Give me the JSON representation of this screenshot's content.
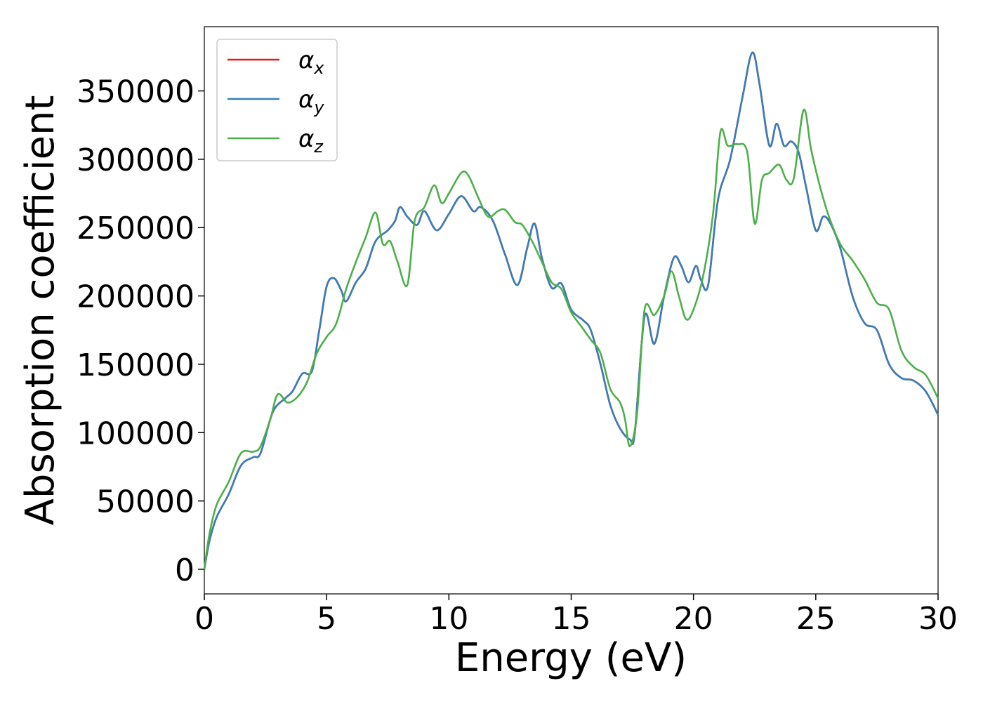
{
  "chart_data": {
    "type": "line",
    "xlabel": "Energy (eV)",
    "ylabel": "Absorption coefficient",
    "xlim": [
      0,
      30
    ],
    "ylim": [
      -18000,
      397000
    ],
    "xticks": [
      "0",
      "5",
      "10",
      "15",
      "20",
      "25",
      "30"
    ],
    "yticks": [
      "0",
      "50000",
      "100000",
      "150000",
      "200000",
      "250000",
      "300000",
      "350000"
    ],
    "grid": false,
    "legend_position": "top-left",
    "series": [
      {
        "name": "α",
        "subscript": "x",
        "color": "#e41a1c",
        "x": [
          0,
          0.2,
          0.5,
          1.0,
          1.5,
          2.0,
          2.3,
          2.8,
          3.3,
          3.6,
          4.0,
          4.4,
          4.7,
          5.0,
          5.3,
          5.6,
          5.8,
          6.2,
          6.6,
          7.0,
          7.5,
          7.8,
          8.0,
          8.3,
          8.7,
          9.0,
          9.5,
          10.0,
          10.5,
          11.0,
          11.3,
          11.8,
          12.3,
          12.8,
          13.2,
          13.5,
          13.8,
          14.2,
          14.6,
          15.0,
          15.5,
          15.8,
          16.2,
          16.6,
          17.0,
          17.4,
          17.6,
          18.0,
          18.4,
          18.8,
          19.2,
          19.5,
          19.8,
          20.1,
          20.3,
          20.6,
          21.0,
          21.5,
          22.0,
          22.4,
          22.7,
          23.1,
          23.4,
          23.7,
          24.0,
          24.3,
          24.6,
          25.0,
          25.3,
          25.6,
          26.0,
          26.5,
          27.0,
          27.5,
          28.0,
          28.5,
          29.0,
          29.5,
          30.0
        ],
        "y": [
          0,
          20000,
          38000,
          55000,
          76000,
          82000,
          85000,
          115000,
          125000,
          130000,
          143000,
          145000,
          175000,
          207000,
          213000,
          204000,
          196000,
          210000,
          220000,
          240000,
          248000,
          255000,
          265000,
          258000,
          252000,
          262000,
          248000,
          260000,
          273000,
          262000,
          265000,
          255000,
          230000,
          208000,
          235000,
          253000,
          228000,
          206000,
          209000,
          190000,
          182000,
          175000,
          150000,
          120000,
          103000,
          95000,
          100000,
          185000,
          165000,
          200000,
          228000,
          222000,
          210000,
          222000,
          212000,
          208000,
          270000,
          300000,
          345000,
          378000,
          355000,
          310000,
          326000,
          310000,
          313000,
          305000,
          280000,
          248000,
          258000,
          253000,
          235000,
          200000,
          180000,
          175000,
          150000,
          140000,
          138000,
          130000,
          113000
        ]
      },
      {
        "name": "α",
        "subscript": "y",
        "color": "#377eb8",
        "x": [
          0,
          0.2,
          0.5,
          1.0,
          1.5,
          2.0,
          2.3,
          2.8,
          3.3,
          3.6,
          4.0,
          4.4,
          4.7,
          5.0,
          5.3,
          5.6,
          5.8,
          6.2,
          6.6,
          7.0,
          7.5,
          7.8,
          8.0,
          8.3,
          8.7,
          9.0,
          9.5,
          10.0,
          10.5,
          11.0,
          11.3,
          11.8,
          12.3,
          12.8,
          13.2,
          13.5,
          13.8,
          14.2,
          14.6,
          15.0,
          15.5,
          15.8,
          16.2,
          16.6,
          17.0,
          17.4,
          17.6,
          18.0,
          18.4,
          18.8,
          19.2,
          19.5,
          19.8,
          20.1,
          20.3,
          20.6,
          21.0,
          21.5,
          22.0,
          22.4,
          22.7,
          23.1,
          23.4,
          23.7,
          24.0,
          24.3,
          24.6,
          25.0,
          25.3,
          25.6,
          26.0,
          26.5,
          27.0,
          27.5,
          28.0,
          28.5,
          29.0,
          29.5,
          30.0
        ],
        "y": [
          0,
          20000,
          38000,
          55000,
          76000,
          82000,
          85000,
          115000,
          125000,
          130000,
          143000,
          145000,
          175000,
          207000,
          213000,
          204000,
          196000,
          210000,
          220000,
          240000,
          248000,
          255000,
          265000,
          258000,
          252000,
          262000,
          248000,
          260000,
          273000,
          262000,
          265000,
          255000,
          230000,
          208000,
          235000,
          253000,
          228000,
          206000,
          209000,
          190000,
          182000,
          175000,
          150000,
          120000,
          103000,
          95000,
          100000,
          185000,
          165000,
          200000,
          228000,
          222000,
          210000,
          222000,
          212000,
          208000,
          270000,
          300000,
          345000,
          378000,
          355000,
          310000,
          326000,
          310000,
          313000,
          305000,
          280000,
          248000,
          258000,
          253000,
          235000,
          200000,
          180000,
          175000,
          150000,
          140000,
          138000,
          130000,
          113000
        ]
      },
      {
        "name": "α",
        "subscript": "z",
        "color": "#4daf4a",
        "x": [
          0,
          0.2,
          0.5,
          1.0,
          1.5,
          2.0,
          2.3,
          2.7,
          3.0,
          3.4,
          3.8,
          4.2,
          4.6,
          5.0,
          5.4,
          5.8,
          6.2,
          6.6,
          7.0,
          7.3,
          7.6,
          7.9,
          8.3,
          8.6,
          9.0,
          9.4,
          9.7,
          10.0,
          10.5,
          10.8,
          11.2,
          11.6,
          12.0,
          12.3,
          12.7,
          13.0,
          13.4,
          13.8,
          14.2,
          14.6,
          15.0,
          15.4,
          15.8,
          16.2,
          16.6,
          17.0,
          17.2,
          17.4,
          17.7,
          18.0,
          18.4,
          18.8,
          19.1,
          19.4,
          19.7,
          20.0,
          20.4,
          20.8,
          21.1,
          21.4,
          21.8,
          22.2,
          22.5,
          22.8,
          23.1,
          23.5,
          23.8,
          24.1,
          24.5,
          24.8,
          25.1,
          25.5,
          26.0,
          26.5,
          27.0,
          27.5,
          28.0,
          28.5,
          29.0,
          29.5,
          30.0
        ],
        "y": [
          0,
          25000,
          47000,
          64000,
          85000,
          86000,
          90000,
          110000,
          128000,
          122000,
          126000,
          137000,
          158000,
          170000,
          180000,
          205000,
          225000,
          243000,
          261000,
          238000,
          240000,
          225000,
          208000,
          255000,
          265000,
          281000,
          268000,
          275000,
          290000,
          288000,
          272000,
          258000,
          262000,
          263000,
          254000,
          252000,
          240000,
          225000,
          210000,
          205000,
          188000,
          178000,
          168000,
          158000,
          132000,
          122000,
          110000,
          90000,
          115000,
          190000,
          186000,
          200000,
          218000,
          200000,
          183000,
          190000,
          215000,
          260000,
          320000,
          310000,
          311000,
          305000,
          253000,
          285000,
          290000,
          296000,
          285000,
          286000,
          336000,
          308000,
          285000,
          260000,
          238000,
          226000,
          212000,
          195000,
          190000,
          160000,
          148000,
          142000,
          125000
        ]
      }
    ]
  }
}
